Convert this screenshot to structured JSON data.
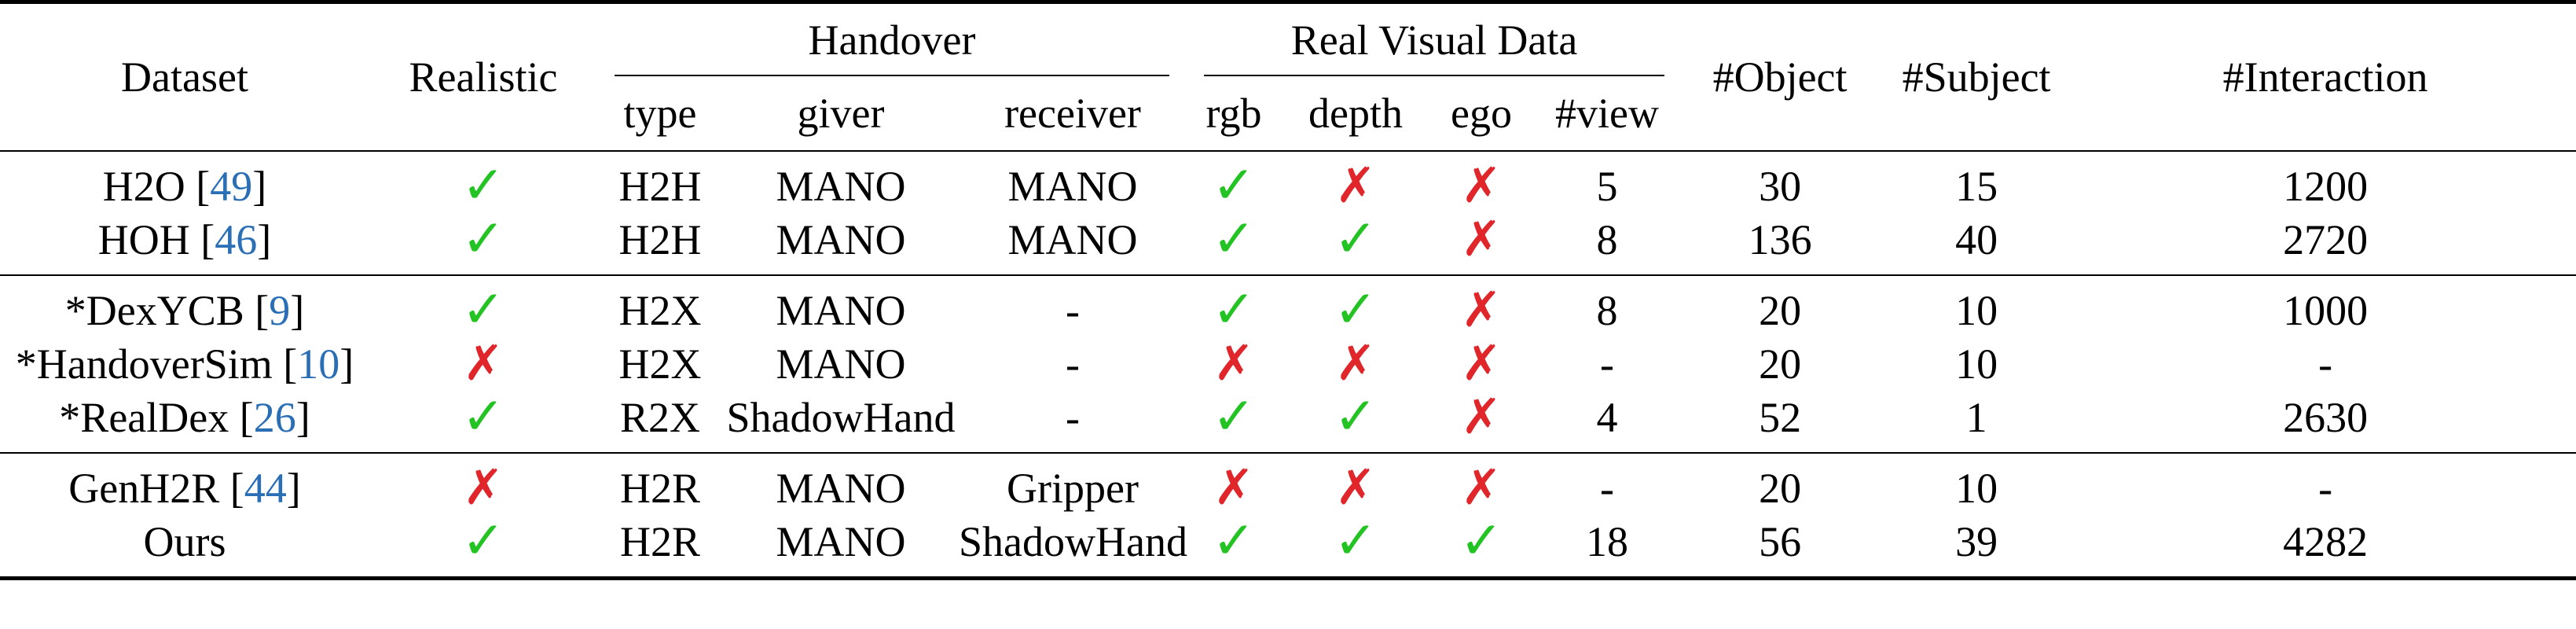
{
  "header": {
    "dataset": "Dataset",
    "realistic": "Realistic",
    "handover": "Handover",
    "real_visual_data": "Real Visual Data",
    "object": "#Object",
    "subject": "#Subject",
    "interaction": "#Interaction",
    "sub": {
      "type": "type",
      "giver": "giver",
      "receiver": "receiver",
      "rgb": "rgb",
      "depth": "depth",
      "ego": "ego",
      "view": "#view"
    }
  },
  "rows": [
    {
      "prefix": "",
      "name": "H2O",
      "cite": "49",
      "realistic": "check",
      "type": "H2H",
      "giver": "MANO",
      "receiver": "MANO",
      "rgb": "check",
      "depth": "cross",
      "ego": "cross",
      "view": "5",
      "object": "30",
      "subject": "15",
      "interaction": "1200"
    },
    {
      "prefix": "",
      "name": "HOH",
      "cite": "46",
      "realistic": "check",
      "type": "H2H",
      "giver": "MANO",
      "receiver": "MANO",
      "rgb": "check",
      "depth": "check",
      "ego": "cross",
      "view": "8",
      "object": "136",
      "subject": "40",
      "interaction": "2720"
    },
    {
      "prefix": "*",
      "name": "DexYCB",
      "cite": "9",
      "realistic": "check",
      "type": "H2X",
      "giver": "MANO",
      "receiver": "-",
      "rgb": "check",
      "depth": "check",
      "ego": "cross",
      "view": "8",
      "object": "20",
      "subject": "10",
      "interaction": "1000"
    },
    {
      "prefix": "*",
      "name": "HandoverSim",
      "cite": "10",
      "realistic": "cross",
      "type": "H2X",
      "giver": "MANO",
      "receiver": "-",
      "rgb": "cross",
      "depth": "cross",
      "ego": "cross",
      "view": "-",
      "object": "20",
      "subject": "10",
      "interaction": "-"
    },
    {
      "prefix": "*",
      "name": "RealDex",
      "cite": "26",
      "realistic": "check",
      "type": "R2X",
      "giver": "ShadowHand",
      "receiver": "-",
      "rgb": "check",
      "depth": "check",
      "ego": "cross",
      "view": "4",
      "object": "52",
      "subject": "1",
      "interaction": "2630"
    },
    {
      "prefix": "",
      "name": "GenH2R",
      "cite": "44",
      "realistic": "cross",
      "type": "H2R",
      "giver": "MANO",
      "receiver": "Gripper",
      "rgb": "cross",
      "depth": "cross",
      "ego": "cross",
      "view": "-",
      "object": "20",
      "subject": "10",
      "interaction": "-"
    },
    {
      "prefix": "",
      "name": "Ours",
      "cite": "",
      "realistic": "check",
      "type": "H2R",
      "giver": "MANO",
      "receiver": "ShadowHand",
      "rgb": "check",
      "depth": "check",
      "ego": "check",
      "view": "18",
      "object": "56",
      "subject": "39",
      "interaction": "4282"
    }
  ],
  "groups": [
    [
      0,
      1
    ],
    [
      2,
      3,
      4
    ],
    [
      5,
      6
    ]
  ],
  "symbols": {
    "check": "✓",
    "cross": "✗"
  },
  "colors": {
    "check": "#22c322",
    "cross": "#e0262b",
    "cite": "#2a6fb5"
  }
}
